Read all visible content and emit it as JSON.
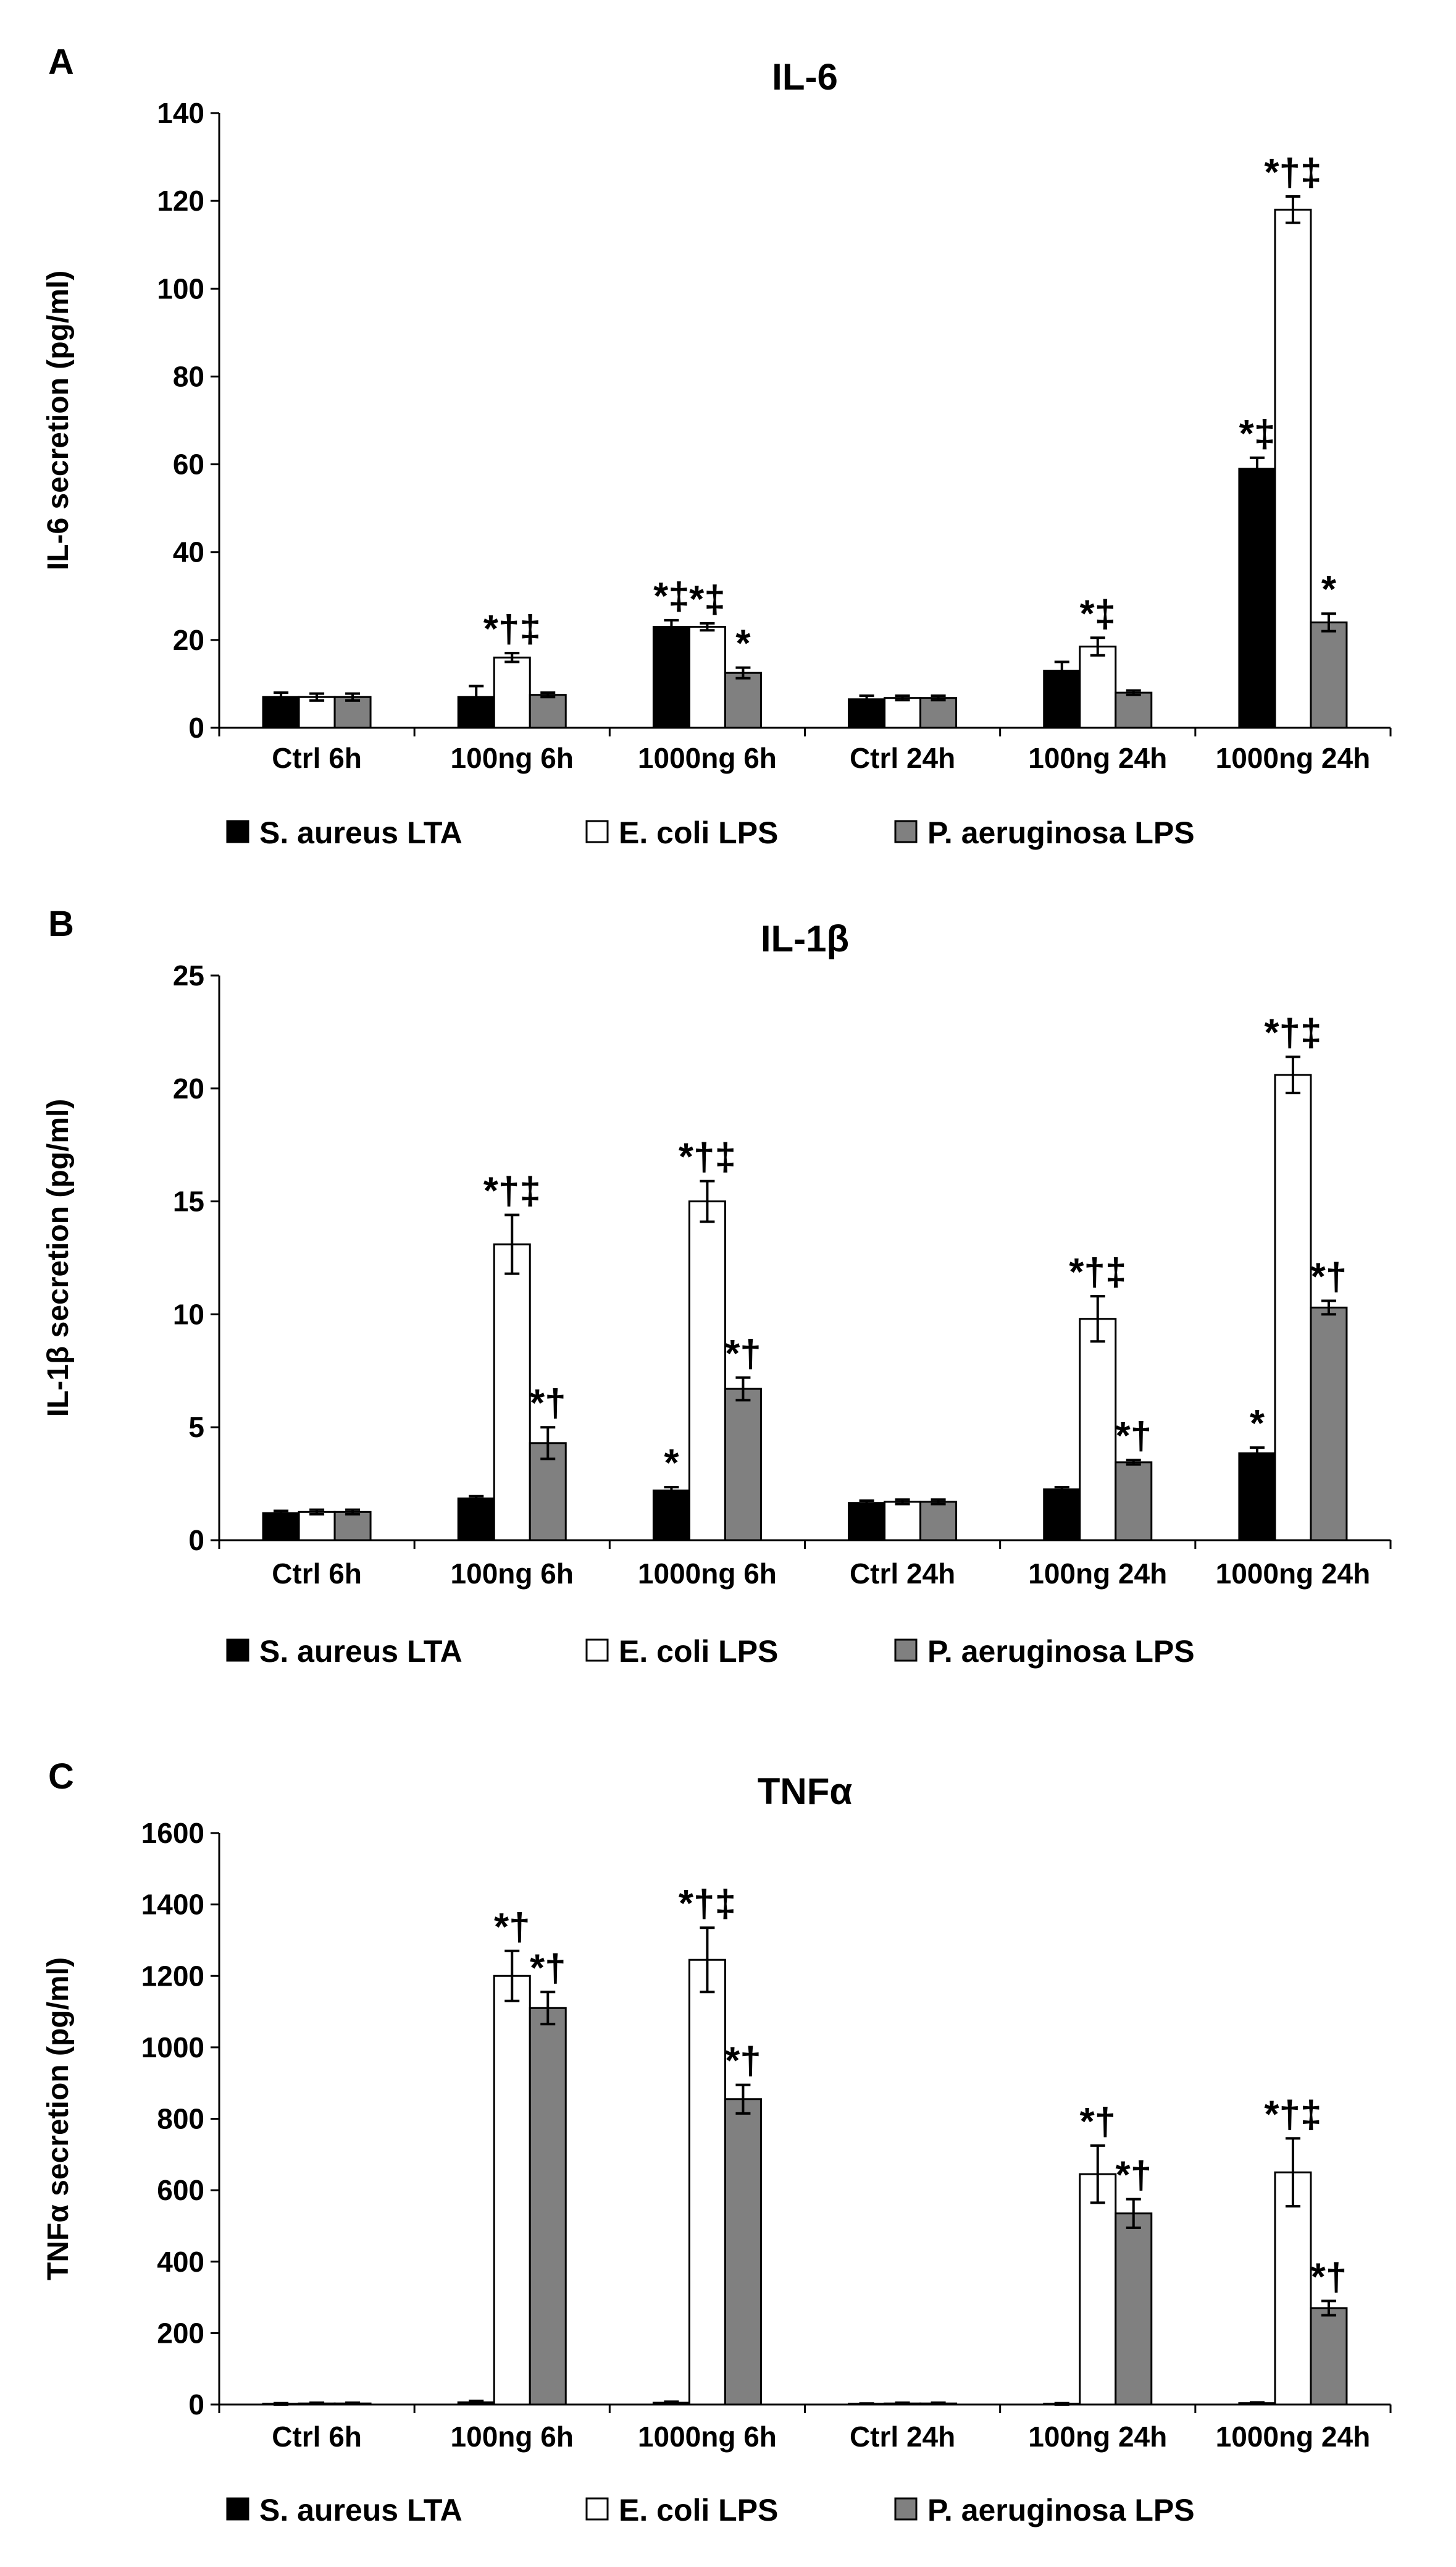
{
  "legend": [
    {
      "name": "S. aureus LTA",
      "color": "#000000"
    },
    {
      "name": "E. coli LPS",
      "color": "#ffffff"
    },
    {
      "name": "P. aeruginosa  LPS",
      "color": "#808080"
    }
  ],
  "chart_data": [
    {
      "type": "bar",
      "panel": "A",
      "title": "IL-6",
      "ylabel": "IL-6 secretion (pg/ml)",
      "xlabel": "",
      "ylim": [
        0,
        140
      ],
      "yticks": [
        0,
        20,
        40,
        60,
        80,
        100,
        120,
        140
      ],
      "categories": [
        "Ctrl 6h",
        "100ng 6h",
        "1000ng 6h",
        "Ctrl 24h",
        "100ng 24h",
        "1000ng 24h"
      ],
      "series": [
        {
          "name": "S. aureus LTA",
          "values": [
            7,
            7,
            23,
            6.5,
            13,
            59
          ],
          "errors": [
            1,
            2.5,
            1.5,
            0.8,
            2,
            2.5
          ],
          "labels": [
            "",
            "",
            "*‡",
            "",
            "",
            "*‡"
          ]
        },
        {
          "name": "E. coli LPS",
          "values": [
            7,
            16,
            23,
            6.8,
            18.5,
            118
          ],
          "errors": [
            0.8,
            1,
            0.8,
            0.5,
            2,
            3
          ],
          "labels": [
            "",
            "*†‡",
            "*‡",
            "",
            "*‡",
            "*†‡"
          ]
        },
        {
          "name": "P. aeruginosa  LPS",
          "values": [
            7,
            7.5,
            12.5,
            6.8,
            8,
            24
          ],
          "errors": [
            0.8,
            0.5,
            1.2,
            0.5,
            0.5,
            2
          ],
          "labels": [
            "",
            "",
            "*",
            "",
            "",
            "*"
          ]
        }
      ],
      "grid": false,
      "legend_position": "bottom"
    },
    {
      "type": "bar",
      "panel": "B",
      "title": "IL-1β",
      "ylabel": "IL-1β secretion (pg/ml)",
      "xlabel": "",
      "ylim": [
        0,
        25
      ],
      "yticks": [
        0,
        5,
        10,
        15,
        20,
        25
      ],
      "categories": [
        "Ctrl 6h",
        "100ng 6h",
        "1000ng 6h",
        "Ctrl 24h",
        "100ng 24h",
        "1000ng 24h"
      ],
      "series": [
        {
          "name": "S. aureus LTA",
          "values": [
            1.2,
            1.85,
            2.2,
            1.65,
            2.25,
            3.85
          ],
          "errors": [
            0.1,
            0.1,
            0.15,
            0.1,
            0.1,
            0.25
          ],
          "labels": [
            "",
            "",
            "*",
            "",
            "",
            "*"
          ]
        },
        {
          "name": "E. coli LPS",
          "values": [
            1.25,
            13.1,
            15.0,
            1.7,
            9.8,
            20.6
          ],
          "errors": [
            0.1,
            1.3,
            0.9,
            0.1,
            1.0,
            0.8
          ],
          "labels": [
            "",
            "*†‡",
            "*†‡",
            "",
            "*†‡",
            "*†‡"
          ]
        },
        {
          "name": "P. aeruginosa  LPS",
          "values": [
            1.25,
            4.3,
            6.7,
            1.7,
            3.45,
            10.3
          ],
          "errors": [
            0.1,
            0.7,
            0.5,
            0.1,
            0.1,
            0.3
          ],
          "labels": [
            "",
            "*†",
            "*†",
            "",
            "*†",
            "*†"
          ]
        }
      ],
      "grid": false,
      "legend_position": "bottom"
    },
    {
      "type": "bar",
      "panel": "C",
      "title": "TNFα",
      "ylabel": "TNFα secretion (pg/ml)",
      "xlabel": "",
      "ylim": [
        0,
        1600
      ],
      "yticks": [
        0,
        200,
        400,
        600,
        800,
        1000,
        1200,
        1400,
        1600
      ],
      "categories": [
        "Ctrl 6h",
        "100ng 6h",
        "1000ng 6h",
        "Ctrl 24h",
        "100ng 24h",
        "1000ng 24h"
      ],
      "series": [
        {
          "name": "S. aureus LTA",
          "values": [
            2,
            6,
            5,
            2,
            2,
            4
          ],
          "errors": [
            2,
            4,
            3,
            1,
            2,
            2
          ],
          "labels": [
            "",
            "",
            "",
            "",
            "",
            ""
          ]
        },
        {
          "name": "E. coli LPS",
          "values": [
            3,
            1200,
            1245,
            3,
            645,
            650
          ],
          "errors": [
            2,
            70,
            90,
            2,
            80,
            95
          ],
          "labels": [
            "",
            "*†",
            "*†‡",
            "",
            "*†",
            "*†‡"
          ]
        },
        {
          "name": "P. aeruginosa  LPS",
          "values": [
            3,
            1110,
            855,
            3,
            535,
            270
          ],
          "errors": [
            2,
            45,
            40,
            2,
            40,
            20
          ],
          "labels": [
            "",
            "*†",
            "*†",
            "",
            "*†",
            "*†"
          ]
        }
      ],
      "grid": false,
      "legend_position": "bottom"
    }
  ]
}
